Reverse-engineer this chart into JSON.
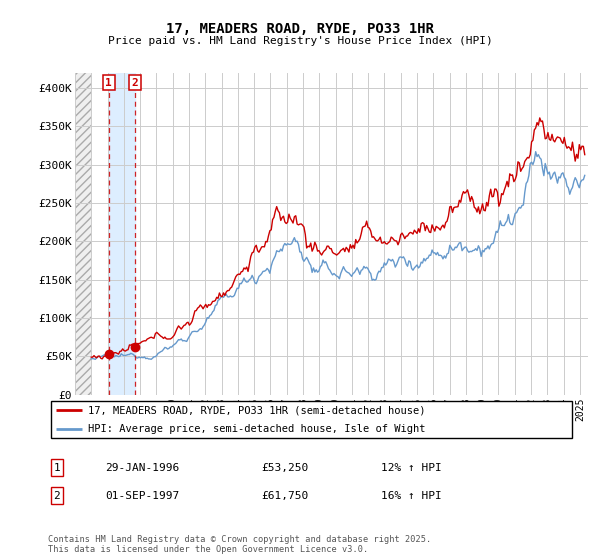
{
  "title": "17, MEADERS ROAD, RYDE, PO33 1HR",
  "subtitle": "Price paid vs. HM Land Registry's House Price Index (HPI)",
  "ylim": [
    0,
    420000
  ],
  "yticks": [
    0,
    50000,
    100000,
    150000,
    200000,
    250000,
    300000,
    350000,
    400000
  ],
  "ytick_labels": [
    "£0",
    "£50K",
    "£100K",
    "£150K",
    "£200K",
    "£250K",
    "£300K",
    "£350K",
    "£400K"
  ],
  "xlim_start": 1994.0,
  "xlim_end": 2025.5,
  "sale1_date": 1996.08,
  "sale1_price": 53250,
  "sale2_date": 1997.67,
  "sale2_price": 61750,
  "red_color": "#cc0000",
  "blue_color": "#6699cc",
  "shade_color": "#ddeeff",
  "grid_color": "#cccccc",
  "legend_line1": "17, MEADERS ROAD, RYDE, PO33 1HR (semi-detached house)",
  "legend_line2": "HPI: Average price, semi-detached house, Isle of Wight",
  "table_row1_num": "1",
  "table_row1_date": "29-JAN-1996",
  "table_row1_price": "£53,250",
  "table_row1_hpi": "12% ↑ HPI",
  "table_row2_num": "2",
  "table_row2_date": "01-SEP-1997",
  "table_row2_price": "£61,750",
  "table_row2_hpi": "16% ↑ HPI",
  "footer": "Contains HM Land Registry data © Crown copyright and database right 2025.\nThis data is licensed under the Open Government Licence v3.0."
}
